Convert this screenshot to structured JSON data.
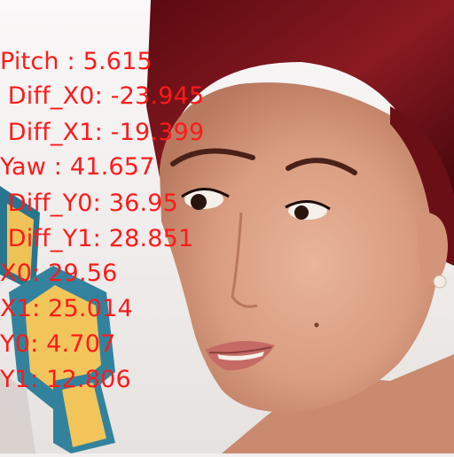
{
  "overlay": {
    "color": "#ff1a1a",
    "lines": [
      "Pitch : 5.615",
      " Diff_X0: -23.945",
      " Diff_X1: -19.399",
      "Yaw : 41.657",
      " Diff_Y0: 36.95",
      " Diff_Y1: 28.851",
      "X0: 29.56",
      "X1: 25.014",
      "Y0: 4.707",
      "Y1: 12.806"
    ]
  }
}
